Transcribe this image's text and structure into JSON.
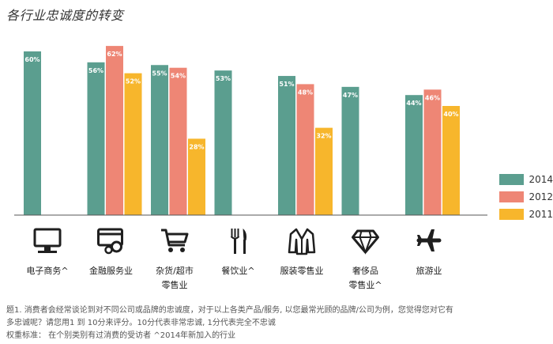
{
  "title": "各行业忠诚度的转变",
  "colors": {
    "2014": "#5b9e8f",
    "2012": "#ee8675",
    "2011": "#f7b62c",
    "icon": "#1f1f1f"
  },
  "legend": [
    "2014",
    "2012",
    "2011"
  ],
  "chart_data": {
    "type": "bar",
    "categories": [
      "电子商务^",
      "金融服务业",
      "杂货/超市零售业",
      "餐饮业^",
      "服装零售业",
      "奢侈品零售业^",
      "旅游业"
    ],
    "series": [
      {
        "name": "2014",
        "values": [
          60,
          56,
          55,
          53,
          51,
          47,
          44
        ]
      },
      {
        "name": "2012",
        "values": [
          null,
          62,
          54,
          null,
          48,
          null,
          46
        ]
      },
      {
        "name": "2011",
        "values": [
          null,
          52,
          28,
          null,
          32,
          null,
          40
        ]
      }
    ],
    "ylim": [
      0,
      66
    ],
    "value_suffix": "%",
    "grid": false,
    "legend_position": "right"
  },
  "category_labels": [
    {
      "line1": "电子商务^",
      "line2": ""
    },
    {
      "line1": "金融服务业",
      "line2": ""
    },
    {
      "line1": "杂货/超市",
      "line2": "零售业"
    },
    {
      "line1": "餐饮业^",
      "line2": ""
    },
    {
      "line1": "服装零售业",
      "line2": ""
    },
    {
      "line1": "奢侈品",
      "line2": "零售业^"
    },
    {
      "line1": "旅游业",
      "line2": ""
    }
  ],
  "icons": [
    "computer-icon",
    "credit-card-icon",
    "shopping-cart-icon",
    "cutlery-icon",
    "shirt-icon",
    "diamond-icon",
    "airplane-icon"
  ],
  "notes": {
    "line1": "题1. 消费者会经常谈论到对不同公司或品牌的忠诚度，对于以上各类产品/服务, 以您最常光顾的品牌/公司为例，您觉得您对它有",
    "line2": "多忠诚呢？请您用1 到 10分来评分。10分代表非常忠诚, 1分代表完全不忠诚",
    "line3": "权重标准：  在个别类别有过消费的受访者 ^2014年新加入的行业"
  }
}
